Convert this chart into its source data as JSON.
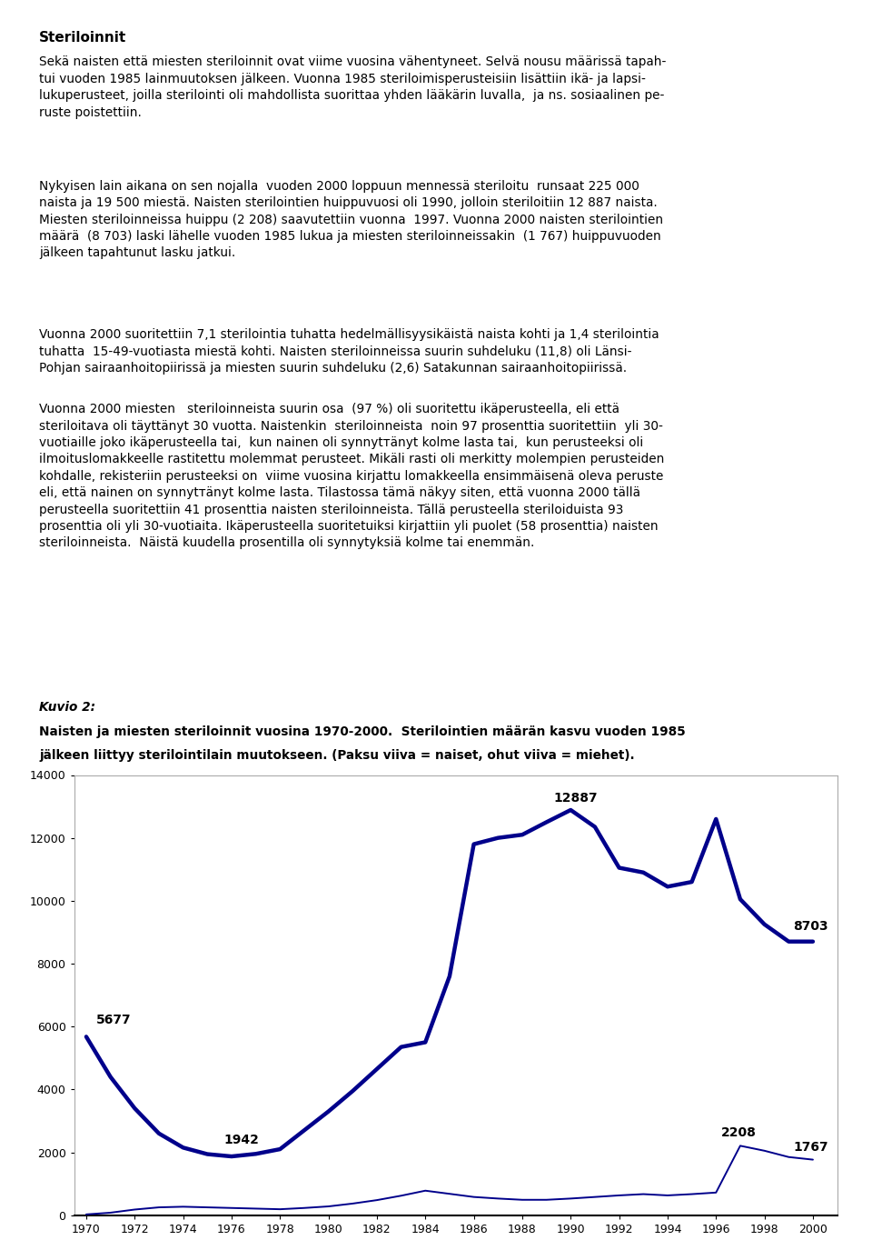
{
  "years": [
    1970,
    1971,
    1972,
    1973,
    1974,
    1975,
    1976,
    1977,
    1978,
    1979,
    1980,
    1981,
    1982,
    1983,
    1984,
    1985,
    1986,
    1987,
    1988,
    1989,
    1990,
    1991,
    1992,
    1993,
    1994,
    1995,
    1996,
    1997,
    1998,
    1999,
    2000
  ],
  "women": [
    5677,
    4400,
    3400,
    2600,
    2150,
    1942,
    1870,
    1950,
    2100,
    2700,
    3300,
    3950,
    4650,
    5350,
    5500,
    7600,
    11800,
    12000,
    12100,
    12500,
    12887,
    12350,
    11050,
    10900,
    10450,
    10600,
    12600,
    10050,
    9250,
    8703,
    8703
  ],
  "men": [
    25,
    80,
    180,
    250,
    270,
    250,
    230,
    210,
    190,
    230,
    280,
    370,
    480,
    620,
    780,
    680,
    580,
    530,
    490,
    490,
    530,
    580,
    630,
    670,
    630,
    670,
    720,
    2208,
    2050,
    1850,
    1767
  ],
  "line_color": "#00008B",
  "women_linewidth": 3.2,
  "men_linewidth": 1.4,
  "ylim": [
    0,
    14000
  ],
  "yticks": [
    0,
    2000,
    4000,
    6000,
    8000,
    10000,
    12000,
    14000
  ],
  "background_color": "#ffffff",
  "font_size_annotation": 10,
  "font_size_ticks": 9,
  "paragraph1": "Sekä naisten että miesten steriloinnit ovat viime vuosina vähentyneet. Selvä nousu määrissä tapah-\ntui vuoden 1985 lainmuutoksen jälkeen. Vuonna 1985 steriloimisperusteisiin lisättiin ikä- ja lapsi-\nlukuperusteet, joilla sterilointi oli mahdollista suorittaa yhden lääkärin luvalla,  ja ns. sosiaalinen pe-\nruste poistettiin.",
  "paragraph2": "Nykyisen lain aikana on sen nojalla  vuoden 2000 loppuun mennessä steriloitu  runsaat 225 000\nnaista ja 19 500 miestä. Naisten sterilointien huippuvuosi oli 1990, jolloin steriloitiin 12 887 naista.\nMiesten steriloinneissa huippu (2 208) saavutettiin vuonna  1997. Vuonna 2000 naisten sterilointien\nmäärä  (8 703) laski lähelle vuoden 1985 lukua ja miesten steriloinneissakin  (1 767) huippuvuoden\njälkeen tapahtunut lasku jatkui.",
  "paragraph3": "Vuonna 2000 suoritettiin 7,1 sterilointia tuhatta hedelmällisyysikäistä naista kohti ja 1,4 sterilointia\ntuhatta  15-49-vuotiasta miestä kohti. Naisten steriloinneissa suurin suhdeluku (11,8) oli Länsi-\nPohjan sairaanhoitopiirissä ja miesten suurin suhdeluku (2,6) Satakunnan sairaanhoitopiirissä.",
  "paragraph4": "Vuonna 2000 miesten   steriloinneista suurin osa  (97 %) oli suoritettu ikäperusteella, eli että\nsteriloitava oli täyttänyt 30 vuotta. Naistenkin  steriloinneista  noin 97 prosenttia suoritettiin  yli 30-\nvuotiaille joko ikäperusteella tai,  kun nainen oli synnytтänyt kolme lasta tai,  kun perusteeksi oli\nilmoituslomakkeelle rastitettu molemmat perusteet. Mikäli rasti oli merkitty molempien perusteiden\nkohdalle, rekisteriin perusteeksi on  viime vuosina kirjattu lomakkeella ensimmäisenä oleva peruste\neli, että nainen on synnytтänyt kolme lasta. Tilastossa tämä näkyy siten, että vuonna 2000 tällä\nperusteella suoritettiin 41 prosenttia naisten steriloinneista. Tällä perusteella steriloiduista 93\nprosenttia oli yli 30-vuotiaita. Ikäperusteella suoritetuiksi kirjattiin yli puolet (58 prosenttia) naisten\nsteriloinneista.  Näistä kuudella prosentilla oli synnytyksiä kolme tai enemmän.",
  "caption_line1": "Kuvio 2:",
  "caption_line2": "Naisten ja miesten steriloinnit vuosina 1970-2000.  Sterilointien määrän kasvu vuoden 1985",
  "caption_line3": "jälkeen liittyy sterilointilain muutokseen. (Paksu viiva = naiset, ohut viiva = miehet).",
  "main_title": "Steriloinnit"
}
